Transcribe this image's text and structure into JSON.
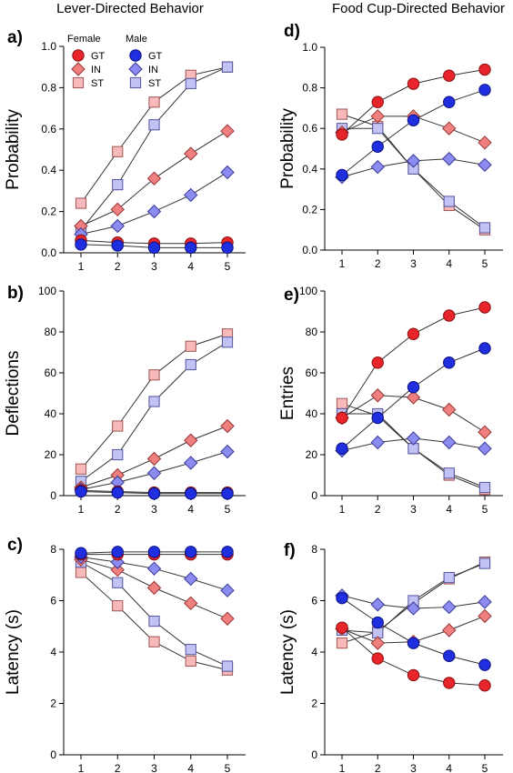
{
  "column_titles": {
    "left": "Lever-Directed Behavior",
    "right": "Food Cup-Directed Behavior"
  },
  "legend": {
    "female_title": "Female",
    "male_title": "Male",
    "female_labels": [
      "GT",
      "IN",
      "ST"
    ],
    "male_labels": [
      "GT",
      "IN",
      "ST"
    ]
  },
  "styles": {
    "Female GT": {
      "fill": "#e8252a",
      "stroke": "#8a1010",
      "shape": "circle"
    },
    "Female IN": {
      "fill": "#f08080",
      "stroke": "#9a3535",
      "shape": "diamond"
    },
    "Female ST": {
      "fill": "#f7b9b9",
      "stroke": "#a05555",
      "shape": "square"
    },
    "Male GT": {
      "fill": "#1f2fe0",
      "stroke": "#0a1080",
      "shape": "circle"
    },
    "Male IN": {
      "fill": "#8c8cf0",
      "stroke": "#3a3a9a",
      "shape": "diamond"
    },
    "Male ST": {
      "fill": "#c2c2f5",
      "stroke": "#5555a0",
      "shape": "square"
    }
  },
  "chart_data": [
    {
      "type": "line",
      "panel": "a)",
      "ylabel": "Probability",
      "x": [
        1,
        2,
        3,
        4,
        5
      ],
      "ylim": [
        0.0,
        1.0
      ],
      "yticks": [
        "0.0",
        "0.2",
        "0.4",
        "0.6",
        "0.8",
        "1.0"
      ],
      "series": [
        {
          "name": "Female GT",
          "values": [
            0.06,
            0.05,
            0.045,
            0.045,
            0.05
          ]
        },
        {
          "name": "Male GT",
          "values": [
            0.04,
            0.035,
            0.025,
            0.025,
            0.025
          ]
        },
        {
          "name": "Female IN",
          "values": [
            0.13,
            0.21,
            0.36,
            0.48,
            0.59
          ]
        },
        {
          "name": "Male IN",
          "values": [
            0.09,
            0.13,
            0.2,
            0.28,
            0.39
          ]
        },
        {
          "name": "Female ST",
          "values": [
            0.24,
            0.49,
            0.73,
            0.86,
            0.9
          ]
        },
        {
          "name": "Male ST",
          "values": [
            0.11,
            0.33,
            0.62,
            0.82,
            0.9
          ]
        }
      ]
    },
    {
      "type": "line",
      "panel": "b)",
      "ylabel": "Deflections",
      "x": [
        1,
        2,
        3,
        4,
        5
      ],
      "ylim": [
        0,
        100
      ],
      "yticks": [
        "0",
        "20",
        "40",
        "60",
        "80",
        "100"
      ],
      "series": [
        {
          "name": "Female GT",
          "values": [
            2.5,
            2,
            1.5,
            1.5,
            1.5
          ]
        },
        {
          "name": "Male GT",
          "values": [
            2,
            1.5,
            1,
            1,
            1
          ]
        },
        {
          "name": "Female IN",
          "values": [
            4,
            10,
            18,
            27,
            34
          ]
        },
        {
          "name": "Male IN",
          "values": [
            3,
            6.5,
            11,
            16,
            21.5
          ]
        },
        {
          "name": "Female ST",
          "values": [
            13,
            34,
            59,
            73,
            79
          ]
        },
        {
          "name": "Male ST",
          "values": [
            7,
            20,
            46,
            64,
            75
          ]
        }
      ]
    },
    {
      "type": "line",
      "panel": "c)",
      "ylabel": "Latency (s)",
      "x": [
        1,
        2,
        3,
        4,
        5
      ],
      "ylim": [
        0,
        8
      ],
      "yticks": [
        "0",
        "2",
        "4",
        "6",
        "8"
      ],
      "series": [
        {
          "name": "Female GT",
          "values": [
            7.8,
            7.8,
            7.8,
            7.8,
            7.8
          ]
        },
        {
          "name": "Male GT",
          "values": [
            7.85,
            7.9,
            7.9,
            7.9,
            7.9
          ]
        },
        {
          "name": "Female IN",
          "values": [
            7.6,
            7.2,
            6.5,
            5.9,
            5.3
          ]
        },
        {
          "name": "Male IN",
          "values": [
            7.7,
            7.5,
            7.25,
            6.85,
            6.4
          ]
        },
        {
          "name": "Female ST",
          "values": [
            7.1,
            5.8,
            4.4,
            3.65,
            3.3
          ]
        },
        {
          "name": "Male ST",
          "values": [
            7.5,
            6.7,
            5.2,
            4.1,
            3.45
          ]
        }
      ]
    },
    {
      "type": "line",
      "panel": "d)",
      "ylabel": "Probability",
      "x": [
        1,
        2,
        3,
        4,
        5
      ],
      "ylim": [
        0.0,
        1.0
      ],
      "yticks": [
        "0.0",
        "0.2",
        "0.4",
        "0.6",
        "0.8",
        "1.0"
      ],
      "series": [
        {
          "name": "Female GT",
          "values": [
            0.57,
            0.73,
            0.82,
            0.86,
            0.89
          ]
        },
        {
          "name": "Male GT",
          "values": [
            0.37,
            0.51,
            0.64,
            0.73,
            0.79
          ]
        },
        {
          "name": "Female IN",
          "values": [
            0.58,
            0.66,
            0.66,
            0.6,
            0.53
          ]
        },
        {
          "name": "Male IN",
          "values": [
            0.36,
            0.41,
            0.44,
            0.45,
            0.42
          ]
        },
        {
          "name": "Female ST",
          "values": [
            0.67,
            0.61,
            0.4,
            0.22,
            0.1
          ]
        },
        {
          "name": "Male ST",
          "values": [
            0.6,
            0.6,
            0.4,
            0.24,
            0.11
          ]
        }
      ]
    },
    {
      "type": "line",
      "panel": "e)",
      "ylabel": "Entries",
      "x": [
        1,
        2,
        3,
        4,
        5
      ],
      "ylim": [
        0,
        100
      ],
      "yticks": [
        "0",
        "20",
        "40",
        "60",
        "80",
        "100"
      ],
      "series": [
        {
          "name": "Female GT",
          "values": [
            38,
            65,
            79,
            88,
            92
          ]
        },
        {
          "name": "Male GT",
          "values": [
            23,
            38,
            53,
            65,
            72
          ]
        },
        {
          "name": "Female IN",
          "values": [
            38,
            49,
            48,
            42,
            31
          ]
        },
        {
          "name": "Male IN",
          "values": [
            22,
            26,
            28,
            26,
            23
          ]
        },
        {
          "name": "Female ST",
          "values": [
            45,
            39,
            23,
            10,
            3
          ]
        },
        {
          "name": "Male ST",
          "values": [
            40,
            40,
            23,
            11,
            4
          ]
        }
      ]
    },
    {
      "type": "line",
      "panel": "f)",
      "ylabel": "Latency (s)",
      "x": [
        1,
        2,
        3,
        4,
        5
      ],
      "ylim": [
        0,
        8
      ],
      "yticks": [
        "0",
        "2",
        "4",
        "6",
        "8"
      ],
      "series": [
        {
          "name": "Female GT",
          "values": [
            4.95,
            3.75,
            3.1,
            2.8,
            2.7
          ]
        },
        {
          "name": "Male GT",
          "values": [
            6.1,
            5.15,
            4.35,
            3.85,
            3.5
          ]
        },
        {
          "name": "Female IN",
          "values": [
            4.9,
            4.35,
            4.4,
            4.85,
            5.4
          ]
        },
        {
          "name": "Male IN",
          "values": [
            6.2,
            5.85,
            5.7,
            5.75,
            5.95
          ]
        },
        {
          "name": "Female ST",
          "values": [
            4.35,
            4.8,
            5.9,
            6.85,
            7.5
          ]
        },
        {
          "name": "Male ST",
          "values": [
            4.85,
            4.75,
            6.0,
            6.9,
            7.45
          ]
        }
      ]
    }
  ]
}
